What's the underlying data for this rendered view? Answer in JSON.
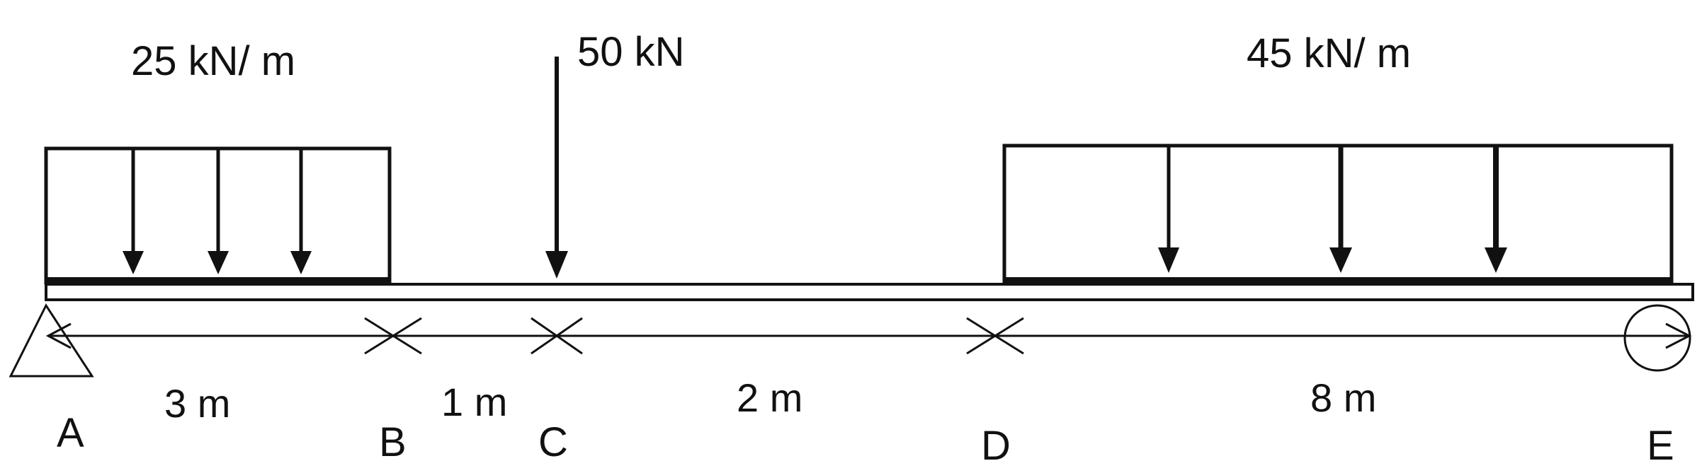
{
  "loads": {
    "udl_left": "25 kN/ m",
    "point_load": "50 kN",
    "udl_right": "45 kN/ m"
  },
  "dimensions": {
    "ab": "3 m",
    "bc": "1 m",
    "cd": "2 m",
    "de": "8 m"
  },
  "points": {
    "a": "A",
    "b": "B",
    "c": "C",
    "d": "D",
    "e": "E"
  },
  "colors": {
    "ink": "#111111",
    "background": "#ffffff"
  }
}
